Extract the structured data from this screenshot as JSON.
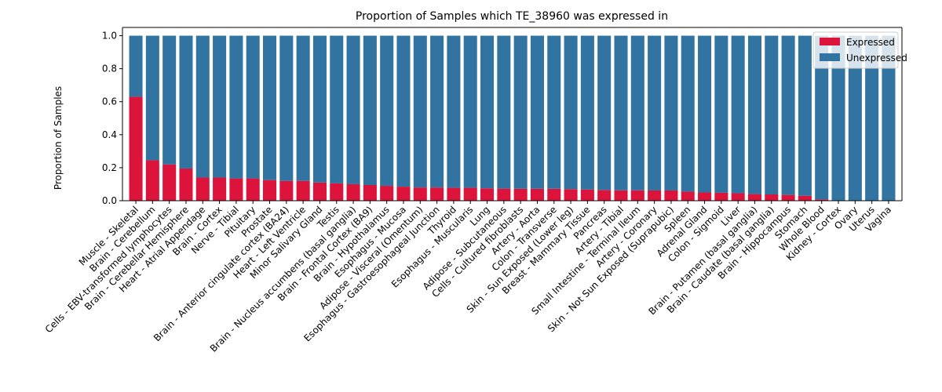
{
  "chart_data": {
    "type": "bar",
    "stacked": true,
    "title": "Proportion of Samples which TE_38960 was expressed in",
    "xlabel": "",
    "ylabel": "Proportion of Samples",
    "ylim": [
      0,
      1.05
    ],
    "yticks": [
      "0.0",
      "0.2",
      "0.4",
      "0.6",
      "0.8",
      "1.0"
    ],
    "grid": false,
    "legend_position": "top-right",
    "categories": [
      "Muscle - Skeletal",
      "Brain - Cerebellum",
      "Cells - EBV-transformed lymphocytes",
      "Brain - Cerebellar Hemisphere",
      "Heart - Atrial Appendage",
      "Brain - Cortex",
      "Nerve - Tibial",
      "Pituitary",
      "Prostate",
      "Brain - Anterior cingulate cortex (BA24)",
      "Heart - Left Ventricle",
      "Minor Salivary Gland",
      "Testis",
      "Brain - Nucleus accumbens (basal ganglia)",
      "Brain - Frontal Cortex (BA9)",
      "Brain - Hypothalamus",
      "Esophagus - Mucosa",
      "Adipose - Visceral (Omentum)",
      "Esophagus - Gastroesophageal Junction",
      "Thyroid",
      "Esophagus - Muscularis",
      "Lung",
      "Adipose - Subcutaneous",
      "Cells - Cultured fibroblasts",
      "Artery - Aorta",
      "Colon - Transverse",
      "Skin - Sun Exposed (Lower leg)",
      "Breast - Mammary Tissue",
      "Pancreas",
      "Artery - Tibial",
      "Small Intestine - Terminal Ileum",
      "Artery - Coronary",
      "Skin - Not Sun Exposed (Suprapubic)",
      "Spleen",
      "Adrenal Gland",
      "Colon - Sigmoid",
      "Liver",
      "Brain - Putamen (basal ganglia)",
      "Brain - Caudate (basal ganglia)",
      "Brain - Hippocampus",
      "Stomach",
      "Whole Blood",
      "Kidney - Cortex",
      "Ovary",
      "Uterus",
      "Vagina"
    ],
    "series": [
      {
        "name": "Expressed",
        "color": "#dc143c",
        "values": [
          0.63,
          0.245,
          0.22,
          0.195,
          0.14,
          0.14,
          0.135,
          0.135,
          0.125,
          0.12,
          0.12,
          0.11,
          0.105,
          0.1,
          0.095,
          0.09,
          0.085,
          0.08,
          0.08,
          0.078,
          0.078,
          0.075,
          0.073,
          0.072,
          0.072,
          0.072,
          0.07,
          0.068,
          0.065,
          0.063,
          0.063,
          0.062,
          0.062,
          0.055,
          0.05,
          0.048,
          0.045,
          0.04,
          0.038,
          0.035,
          0.03,
          0.008,
          0.0,
          0.0,
          0.0,
          0.0
        ]
      },
      {
        "name": "Unexpressed",
        "color": "#3274a1",
        "values": [
          0.37,
          0.755,
          0.78,
          0.805,
          0.86,
          0.86,
          0.865,
          0.865,
          0.875,
          0.88,
          0.88,
          0.89,
          0.895,
          0.9,
          0.905,
          0.91,
          0.915,
          0.92,
          0.92,
          0.922,
          0.922,
          0.925,
          0.927,
          0.928,
          0.928,
          0.928,
          0.93,
          0.932,
          0.935,
          0.937,
          0.937,
          0.938,
          0.938,
          0.945,
          0.95,
          0.952,
          0.955,
          0.96,
          0.962,
          0.965,
          0.97,
          0.992,
          1.0,
          1.0,
          1.0,
          1.0
        ]
      }
    ]
  }
}
